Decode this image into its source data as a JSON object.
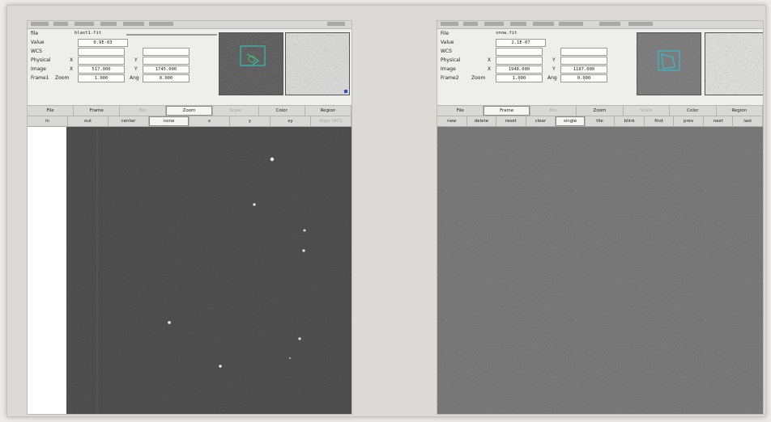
{
  "left_window": {
    "info": {
      "file_label": "file",
      "file_value": "blast1.fit",
      "value_label": "Value",
      "value_value": "0.9E-03",
      "wcs_label": "WCS",
      "physical_label": "Physical",
      "physical_x_label": "X",
      "physical_y_label": "Y",
      "image_label": "Image",
      "image_x_label": "X",
      "image_x_value": "517.000",
      "image_y_label": "Y",
      "image_y_value": "1745.000",
      "frame_label": "Frame1",
      "zoom_label": "Zoom",
      "zoom_value": "1.000",
      "angle_label": "Ang",
      "angle_value": "0.000"
    },
    "menu": [
      {
        "label": "File",
        "state": "normal"
      },
      {
        "label": "Frame",
        "state": "normal"
      },
      {
        "label": "Bin",
        "state": "dim"
      },
      {
        "label": "Zoom",
        "state": "selected"
      },
      {
        "label": "Scale",
        "state": "dim"
      },
      {
        "label": "Color",
        "state": "normal"
      },
      {
        "label": "Region",
        "state": "normal"
      }
    ],
    "submenu": [
      {
        "label": "in",
        "state": "normal"
      },
      {
        "label": "out",
        "state": "normal"
      },
      {
        "label": "center",
        "state": "normal"
      },
      {
        "label": "none",
        "state": "selected"
      },
      {
        "label": "x",
        "state": "normal"
      },
      {
        "label": "y",
        "state": "normal"
      },
      {
        "label": "xy",
        "state": "normal"
      },
      {
        "label": "Align WCS",
        "state": "dim"
      }
    ]
  },
  "right_window": {
    "info": {
      "file_label": "File",
      "file_value": "snow.fit",
      "value_label": "Value",
      "value_value": "2.1E-07",
      "wcs_label": "WCS",
      "physical_label": "Physical",
      "physical_x_label": "X",
      "physical_y_label": "Y",
      "image_label": "Image",
      "image_x_label": "X",
      "image_x_value": "1948.000",
      "image_y_label": "Y",
      "image_y_value": "1187.000",
      "frame_label": "Frame2",
      "zoom_label": "Zoom",
      "zoom_value": "1.000",
      "angle_label": "Ang",
      "angle_value": "0.000"
    },
    "menu": [
      {
        "label": "File",
        "state": "normal"
      },
      {
        "label": "Frame",
        "state": "selected"
      },
      {
        "label": "Bin",
        "state": "dim"
      },
      {
        "label": "Zoom",
        "state": "normal"
      },
      {
        "label": "Scale",
        "state": "dim"
      },
      {
        "label": "Color",
        "state": "normal"
      },
      {
        "label": "Region",
        "state": "normal"
      }
    ],
    "submenu": [
      {
        "label": "new",
        "state": "normal"
      },
      {
        "label": "delete",
        "state": "normal"
      },
      {
        "label": "reset",
        "state": "normal"
      },
      {
        "label": "clear",
        "state": "normal"
      },
      {
        "label": "single",
        "state": "selected"
      },
      {
        "label": "tile",
        "state": "normal"
      },
      {
        "label": "blink",
        "state": "normal"
      },
      {
        "label": "first",
        "state": "normal"
      },
      {
        "label": "prev",
        "state": "normal"
      },
      {
        "label": "next",
        "state": "normal"
      },
      {
        "label": "last",
        "state": "normal"
      }
    ]
  },
  "colors": {
    "sky_dark": "#3f3f3f",
    "sky_right": "#6a6a6a",
    "panel_bg": "#eeeeec",
    "region_color": "#27c9d8"
  }
}
